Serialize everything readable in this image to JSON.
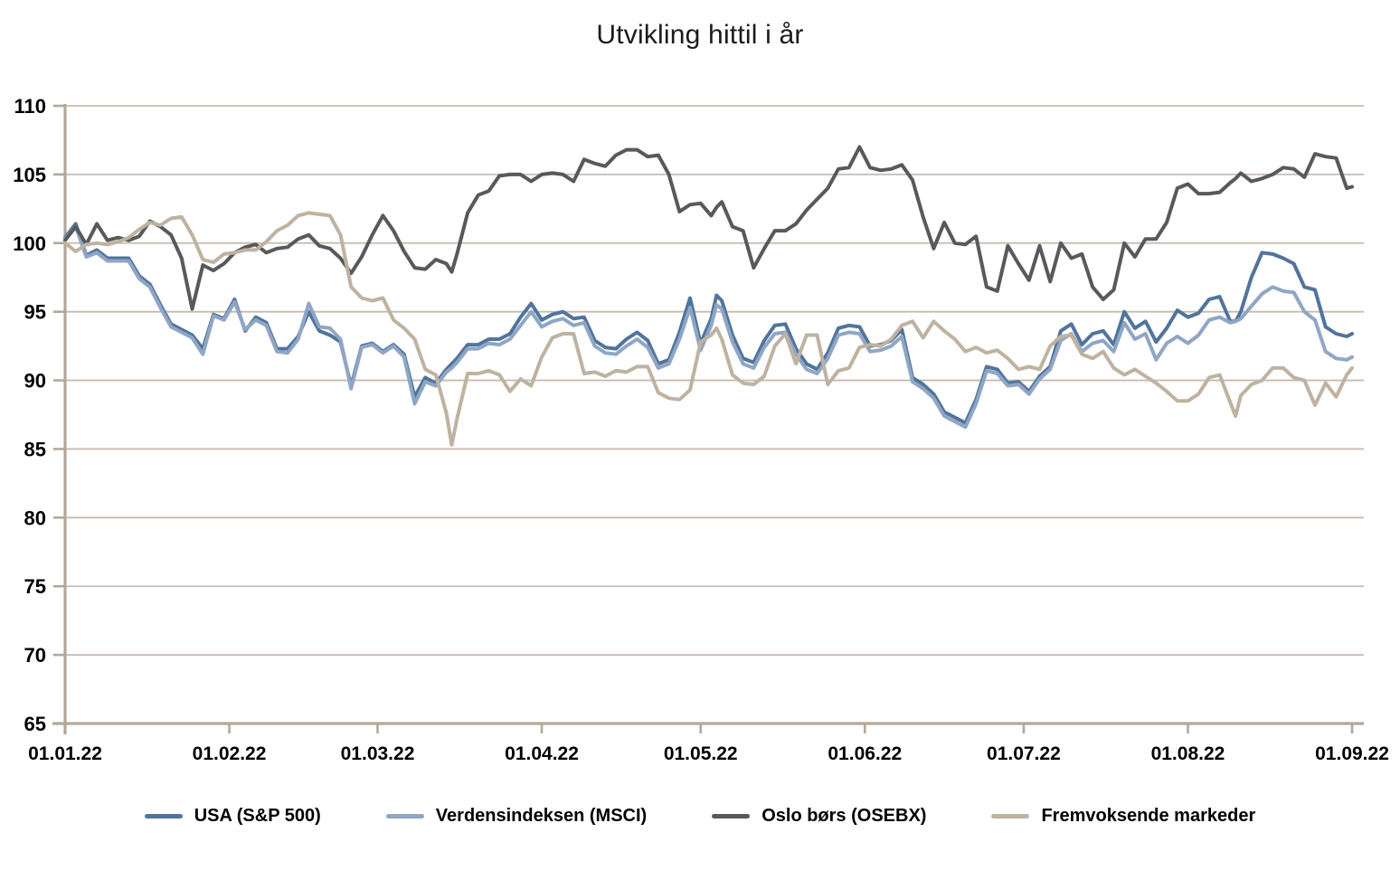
{
  "title": "Utvikling hittil i år",
  "chart_data": {
    "type": "line",
    "title": "Utvikling hittil i år",
    "x_unit": "days_since_01.01.22",
    "x_tick_labels": [
      "01.01.22",
      "01.02.22",
      "01.03.22",
      "01.04.22",
      "01.05.22",
      "01.06.22",
      "01.07.22",
      "01.08.22",
      "01.09.22"
    ],
    "x_tick_days": [
      0,
      31,
      59,
      90,
      120,
      151,
      181,
      212,
      243
    ],
    "ylim": [
      65,
      110
    ],
    "y_step": 5,
    "grid": true,
    "legend_position": "bottom",
    "axis_color": "#b3a79a",
    "grid_color": "#c6bbae",
    "days": [
      0,
      2,
      4,
      6,
      8,
      10,
      12,
      14,
      16,
      18,
      20,
      22,
      24,
      26,
      28,
      30,
      32,
      34,
      36,
      38,
      40,
      42,
      44,
      46,
      48,
      50,
      52,
      54,
      56,
      58,
      60,
      62,
      64,
      66,
      68,
      70,
      72,
      73,
      74,
      76,
      78,
      80,
      82,
      84,
      86,
      88,
      90,
      92,
      94,
      96,
      98,
      100,
      102,
      104,
      106,
      108,
      110,
      112,
      114,
      116,
      118,
      120,
      122,
      123,
      124,
      126,
      128,
      130,
      132,
      134,
      136,
      138,
      140,
      142,
      144,
      146,
      148,
      150,
      152,
      154,
      156,
      158,
      160,
      162,
      164,
      166,
      168,
      170,
      172,
      174,
      176,
      178,
      180,
      182,
      184,
      186,
      188,
      190,
      192,
      194,
      196,
      198,
      200,
      202,
      204,
      206,
      208,
      210,
      212,
      214,
      216,
      218,
      220,
      221,
      222,
      224,
      226,
      228,
      230,
      232,
      234,
      236,
      238,
      240,
      242,
      243
    ],
    "series": [
      {
        "name": "USA (S&P 500)",
        "color": "#51749c",
        "values": [
          100.4,
          101.4,
          99.1,
          99.5,
          98.9,
          98.9,
          98.9,
          97.6,
          97.0,
          95.5,
          94.1,
          93.7,
          93.3,
          92.3,
          94.8,
          94.5,
          95.9,
          93.6,
          94.6,
          94.2,
          92.3,
          92.3,
          93.2,
          95.0,
          93.6,
          93.3,
          92.8,
          89.6,
          92.5,
          92.7,
          92.1,
          92.6,
          91.9,
          88.8,
          90.2,
          89.8,
          90.8,
          91.2,
          91.6,
          92.6,
          92.6,
          93.0,
          93.0,
          93.4,
          94.6,
          95.6,
          94.4,
          94.8,
          95.0,
          94.5,
          94.6,
          92.9,
          92.4,
          92.3,
          93.0,
          93.5,
          92.9,
          91.2,
          91.5,
          93.5,
          96.0,
          92.7,
          94.5,
          96.2,
          95.8,
          93.3,
          91.6,
          91.3,
          92.9,
          94.0,
          94.1,
          92.3,
          91.2,
          90.8,
          92.0,
          93.8,
          94.0,
          93.9,
          92.5,
          92.6,
          92.9,
          93.7,
          90.2,
          89.7,
          89.0,
          87.7,
          87.3,
          86.9,
          88.6,
          91.0,
          90.8,
          89.8,
          89.9,
          89.2,
          90.3,
          91.0,
          93.6,
          94.1,
          92.6,
          93.4,
          93.6,
          92.6,
          95.0,
          93.8,
          94.3,
          92.8,
          93.8,
          95.1,
          94.6,
          94.9,
          95.9,
          96.1,
          94.3,
          94.3,
          95.0,
          97.5,
          99.3,
          99.2,
          98.9,
          98.5,
          96.8,
          96.6,
          93.9,
          93.4,
          93.2,
          93.4
        ]
      },
      {
        "name": "Verdensindeksen (MSCI)",
        "color": "#8fa6c5",
        "values": [
          100.3,
          101.2,
          99.0,
          99.3,
          98.7,
          98.7,
          98.7,
          97.4,
          96.8,
          95.3,
          93.9,
          93.5,
          93.1,
          91.9,
          94.7,
          94.4,
          95.7,
          93.7,
          94.4,
          94.0,
          92.1,
          92.0,
          93.0,
          95.6,
          93.9,
          93.8,
          93.0,
          89.4,
          92.4,
          92.6,
          92.0,
          92.5,
          91.7,
          88.3,
          89.9,
          89.6,
          90.6,
          90.9,
          91.3,
          92.3,
          92.3,
          92.7,
          92.6,
          93.0,
          94.0,
          95.0,
          93.9,
          94.3,
          94.5,
          94.0,
          94.2,
          92.5,
          92.0,
          91.9,
          92.5,
          93.0,
          92.4,
          90.9,
          91.2,
          93.0,
          95.3,
          92.2,
          94.0,
          95.5,
          95.2,
          92.8,
          91.2,
          90.9,
          92.4,
          93.4,
          93.5,
          91.9,
          90.8,
          90.5,
          91.6,
          93.3,
          93.5,
          93.4,
          92.1,
          92.2,
          92.5,
          93.2,
          89.9,
          89.4,
          88.7,
          87.4,
          87.0,
          86.6,
          88.3,
          90.7,
          90.5,
          89.6,
          89.7,
          89.0,
          90.1,
          90.8,
          92.9,
          93.4,
          92.1,
          92.7,
          92.9,
          92.1,
          94.2,
          93.0,
          93.4,
          91.5,
          92.7,
          93.2,
          92.7,
          93.3,
          94.4,
          94.6,
          94.2,
          94.3,
          94.5,
          95.4,
          96.3,
          96.8,
          96.5,
          96.4,
          95.0,
          94.4,
          92.1,
          91.6,
          91.5,
          91.7
        ]
      },
      {
        "name": "Oslo børs (OSEBX)",
        "color": "#595959",
        "values": [
          100.2,
          101.2,
          99.9,
          101.4,
          100.2,
          100.4,
          100.2,
          100.5,
          101.6,
          101.2,
          100.6,
          98.9,
          95.2,
          98.4,
          98.0,
          98.5,
          99.3,
          99.7,
          99.9,
          99.3,
          99.6,
          99.7,
          100.3,
          100.6,
          99.8,
          99.6,
          98.9,
          97.8,
          99.0,
          100.6,
          102.0,
          100.9,
          99.4,
          98.2,
          98.1,
          98.8,
          98.5,
          97.9,
          99.2,
          102.2,
          103.5,
          103.8,
          104.9,
          105.0,
          105.0,
          104.5,
          105.0,
          105.1,
          105.0,
          104.5,
          106.1,
          105.8,
          105.6,
          106.4,
          106.8,
          106.8,
          106.3,
          106.4,
          105.0,
          102.3,
          102.8,
          102.9,
          102.0,
          102.6,
          103.0,
          101.2,
          100.9,
          98.2,
          99.6,
          100.9,
          100.9,
          101.4,
          102.4,
          103.2,
          104.0,
          105.4,
          105.5,
          107.0,
          105.5,
          105.3,
          105.4,
          105.7,
          104.6,
          101.9,
          99.6,
          101.5,
          100.0,
          99.9,
          100.5,
          96.8,
          96.5,
          99.8,
          98.5,
          97.3,
          99.8,
          97.2,
          100.0,
          98.9,
          99.2,
          96.8,
          95.9,
          96.6,
          100.0,
          99.0,
          100.3,
          100.3,
          101.5,
          104.0,
          104.3,
          103.6,
          103.6,
          103.7,
          104.4,
          104.7,
          105.1,
          104.5,
          104.7,
          105.0,
          105.5,
          105.4,
          104.8,
          106.5,
          106.3,
          106.2,
          104.0,
          104.1
        ]
      },
      {
        "name": "Fremvoksende markeder",
        "color": "#bfb2a1",
        "values": [
          100.0,
          99.4,
          99.9,
          100.0,
          99.9,
          100.1,
          100.4,
          101.0,
          101.5,
          101.3,
          101.8,
          101.9,
          100.6,
          98.8,
          98.6,
          99.2,
          99.3,
          99.5,
          99.5,
          100.1,
          100.9,
          101.3,
          102.0,
          102.2,
          102.1,
          102.0,
          100.6,
          96.8,
          96.0,
          95.8,
          96.0,
          94.4,
          93.8,
          93.0,
          90.8,
          90.4,
          87.6,
          85.3,
          87.2,
          90.5,
          90.5,
          90.7,
          90.4,
          89.2,
          90.1,
          89.6,
          91.7,
          93.1,
          93.4,
          93.4,
          90.5,
          90.6,
          90.3,
          90.7,
          90.6,
          91.0,
          91.0,
          89.1,
          88.7,
          88.6,
          89.3,
          92.8,
          93.3,
          93.8,
          93.0,
          90.4,
          89.8,
          89.7,
          90.3,
          92.5,
          93.4,
          91.2,
          93.3,
          93.3,
          89.7,
          90.7,
          90.9,
          92.4,
          92.6,
          92.5,
          93.0,
          94.0,
          94.3,
          93.1,
          94.3,
          93.6,
          93.0,
          92.1,
          92.4,
          92.0,
          92.2,
          91.6,
          90.8,
          91.0,
          90.8,
          92.5,
          93.2,
          93.3,
          91.9,
          91.6,
          92.1,
          90.9,
          90.4,
          90.8,
          90.3,
          89.8,
          89.2,
          88.5,
          88.5,
          89.0,
          90.2,
          90.4,
          88.4,
          87.4,
          88.9,
          89.7,
          90.0,
          90.9,
          90.9,
          90.2,
          90.0,
          88.2,
          89.8,
          88.8,
          90.4,
          90.9
        ]
      }
    ]
  },
  "legend": {
    "items": [
      "USA (S&P 500)",
      "Verdensindeksen (MSCI)",
      "Oslo børs (OSEBX)",
      "Fremvoksende markeder"
    ]
  }
}
